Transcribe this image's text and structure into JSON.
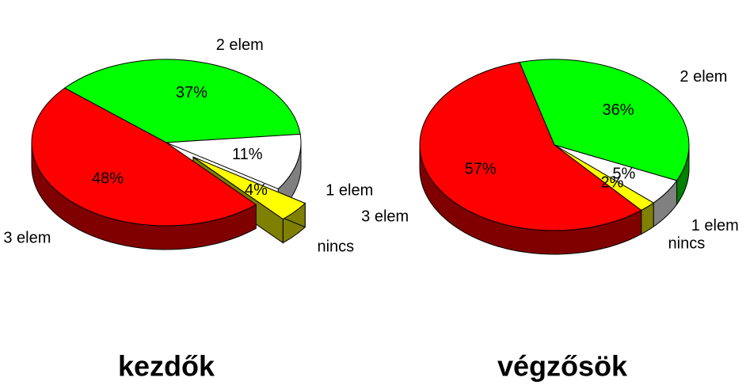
{
  "chart_data": [
    {
      "type": "pie",
      "title": "kezdők",
      "categories": [
        "2 elem",
        "1 elem",
        "nincs",
        "3 elem"
      ],
      "values": [
        37,
        11,
        4,
        48
      ],
      "value_labels": [
        "37%",
        "11%",
        "4%",
        "48%"
      ],
      "colors": [
        "#00ff00",
        "#ffffff",
        "#ffff00",
        "#ff0000"
      ]
    },
    {
      "type": "pie",
      "title": "végzősök",
      "categories": [
        "2 elem",
        "1 elem",
        "nincs",
        "3 elem"
      ],
      "values": [
        36,
        5,
        2,
        57
      ],
      "value_labels": [
        "36%",
        "5%",
        "2%",
        "57%"
      ],
      "colors": [
        "#00ff00",
        "#ffffff",
        "#ffff00",
        "#ff0000"
      ]
    }
  ]
}
